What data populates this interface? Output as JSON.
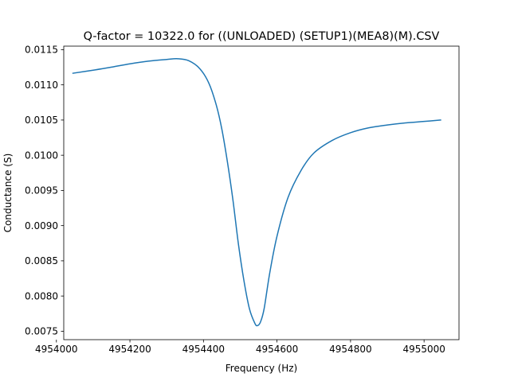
{
  "chart_data": {
    "type": "line",
    "title": "Q-factor = 10322.0 for ((UNLOADED) (SETUP1)(MEA8)(M).CSV",
    "xlabel": "Frequency (Hz)",
    "ylabel": "Conductance (S)",
    "xlim": [
      4954020,
      4955095
    ],
    "ylim": [
      0.00738,
      0.01155
    ],
    "x_ticks": [
      4954000,
      4954200,
      4954400,
      4954600,
      4954800,
      4955000
    ],
    "x_tick_labels": [
      "4954000",
      "4954200",
      "4954400",
      "4954600",
      "4954800",
      "4955000"
    ],
    "y_ticks": [
      0.0075,
      0.008,
      0.0085,
      0.009,
      0.0095,
      0.01,
      0.0105,
      0.011,
      0.0115
    ],
    "y_tick_labels": [
      "0.0075",
      "0.0080",
      "0.0085",
      "0.0090",
      "0.0095",
      "0.0100",
      "0.0105",
      "0.0110",
      "0.0115"
    ],
    "grid": false,
    "line_color": "#1f77b4",
    "series": [
      {
        "x": [
          4954045,
          4954100,
          4954150,
          4954200,
          4954250,
          4954300,
          4954330,
          4954360,
          4954390,
          4954415,
          4954435,
          4954450,
          4954465,
          4954480,
          4954495,
          4954510,
          4954525,
          4954540,
          4954547,
          4954555,
          4954565,
          4954580,
          4954600,
          4954630,
          4954665,
          4954700,
          4954750,
          4954800,
          4954850,
          4954900,
          4954950,
          4955000,
          4955045
        ],
        "y": [
          0.011165,
          0.011208,
          0.011252,
          0.011299,
          0.011337,
          0.011361,
          0.011371,
          0.011343,
          0.01123,
          0.01102,
          0.01071,
          0.01037,
          0.00991,
          0.00937,
          0.00874,
          0.00822,
          0.00782,
          0.00761,
          0.00758,
          0.00763,
          0.00782,
          0.00832,
          0.00885,
          0.0094,
          0.00978,
          0.01003,
          0.01021,
          0.01032,
          0.01039,
          0.01043,
          0.01046,
          0.01048,
          0.0105
        ]
      }
    ]
  }
}
